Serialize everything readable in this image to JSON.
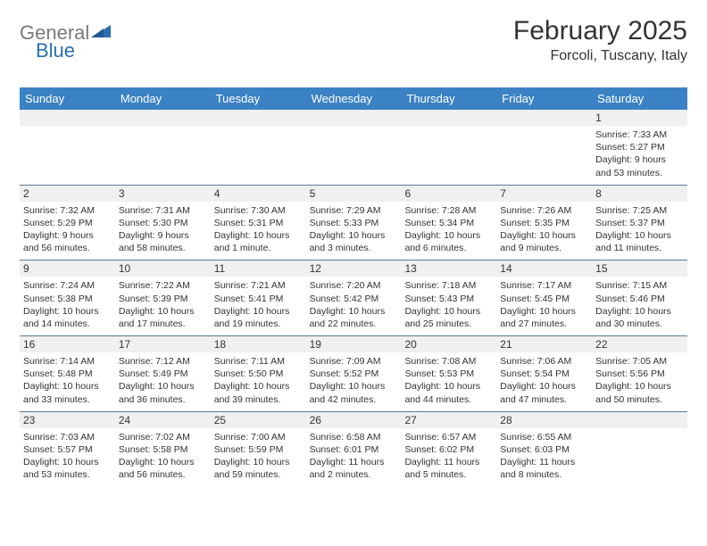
{
  "logo": {
    "textGray": "General",
    "textBlue": "Blue"
  },
  "header": {
    "title": "February 2025",
    "location": "Forcoli, Tuscany, Italy"
  },
  "colors": {
    "headerBar": "#3b82c4",
    "headerText": "#ffffff",
    "dayNumBand": "#f0f0f0",
    "rowBorder": "#5a7a9a",
    "bodyText": "#333333",
    "logoGray": "#7a7a7a",
    "logoBlue": "#2a6fb0",
    "background": "#ffffff"
  },
  "typography": {
    "titleSize": 30,
    "locationSize": 16,
    "weekdaySize": 13,
    "dayNumSize": 12,
    "cellTextSize": 10.5,
    "logoSize": 22
  },
  "weekdays": [
    "Sunday",
    "Monday",
    "Tuesday",
    "Wednesday",
    "Thursday",
    "Friday",
    "Saturday"
  ],
  "weeks": [
    [
      {
        "num": "",
        "l1": "",
        "l2": "",
        "l3": "",
        "l4": ""
      },
      {
        "num": "",
        "l1": "",
        "l2": "",
        "l3": "",
        "l4": ""
      },
      {
        "num": "",
        "l1": "",
        "l2": "",
        "l3": "",
        "l4": ""
      },
      {
        "num": "",
        "l1": "",
        "l2": "",
        "l3": "",
        "l4": ""
      },
      {
        "num": "",
        "l1": "",
        "l2": "",
        "l3": "",
        "l4": ""
      },
      {
        "num": "",
        "l1": "",
        "l2": "",
        "l3": "",
        "l4": ""
      },
      {
        "num": "1",
        "l1": "Sunrise: 7:33 AM",
        "l2": "Sunset: 5:27 PM",
        "l3": "Daylight: 9 hours",
        "l4": "and 53 minutes."
      }
    ],
    [
      {
        "num": "2",
        "l1": "Sunrise: 7:32 AM",
        "l2": "Sunset: 5:29 PM",
        "l3": "Daylight: 9 hours",
        "l4": "and 56 minutes."
      },
      {
        "num": "3",
        "l1": "Sunrise: 7:31 AM",
        "l2": "Sunset: 5:30 PM",
        "l3": "Daylight: 9 hours",
        "l4": "and 58 minutes."
      },
      {
        "num": "4",
        "l1": "Sunrise: 7:30 AM",
        "l2": "Sunset: 5:31 PM",
        "l3": "Daylight: 10 hours",
        "l4": "and 1 minute."
      },
      {
        "num": "5",
        "l1": "Sunrise: 7:29 AM",
        "l2": "Sunset: 5:33 PM",
        "l3": "Daylight: 10 hours",
        "l4": "and 3 minutes."
      },
      {
        "num": "6",
        "l1": "Sunrise: 7:28 AM",
        "l2": "Sunset: 5:34 PM",
        "l3": "Daylight: 10 hours",
        "l4": "and 6 minutes."
      },
      {
        "num": "7",
        "l1": "Sunrise: 7:26 AM",
        "l2": "Sunset: 5:35 PM",
        "l3": "Daylight: 10 hours",
        "l4": "and 9 minutes."
      },
      {
        "num": "8",
        "l1": "Sunrise: 7:25 AM",
        "l2": "Sunset: 5:37 PM",
        "l3": "Daylight: 10 hours",
        "l4": "and 11 minutes."
      }
    ],
    [
      {
        "num": "9",
        "l1": "Sunrise: 7:24 AM",
        "l2": "Sunset: 5:38 PM",
        "l3": "Daylight: 10 hours",
        "l4": "and 14 minutes."
      },
      {
        "num": "10",
        "l1": "Sunrise: 7:22 AM",
        "l2": "Sunset: 5:39 PM",
        "l3": "Daylight: 10 hours",
        "l4": "and 17 minutes."
      },
      {
        "num": "11",
        "l1": "Sunrise: 7:21 AM",
        "l2": "Sunset: 5:41 PM",
        "l3": "Daylight: 10 hours",
        "l4": "and 19 minutes."
      },
      {
        "num": "12",
        "l1": "Sunrise: 7:20 AM",
        "l2": "Sunset: 5:42 PM",
        "l3": "Daylight: 10 hours",
        "l4": "and 22 minutes."
      },
      {
        "num": "13",
        "l1": "Sunrise: 7:18 AM",
        "l2": "Sunset: 5:43 PM",
        "l3": "Daylight: 10 hours",
        "l4": "and 25 minutes."
      },
      {
        "num": "14",
        "l1": "Sunrise: 7:17 AM",
        "l2": "Sunset: 5:45 PM",
        "l3": "Daylight: 10 hours",
        "l4": "and 27 minutes."
      },
      {
        "num": "15",
        "l1": "Sunrise: 7:15 AM",
        "l2": "Sunset: 5:46 PM",
        "l3": "Daylight: 10 hours",
        "l4": "and 30 minutes."
      }
    ],
    [
      {
        "num": "16",
        "l1": "Sunrise: 7:14 AM",
        "l2": "Sunset: 5:48 PM",
        "l3": "Daylight: 10 hours",
        "l4": "and 33 minutes."
      },
      {
        "num": "17",
        "l1": "Sunrise: 7:12 AM",
        "l2": "Sunset: 5:49 PM",
        "l3": "Daylight: 10 hours",
        "l4": "and 36 minutes."
      },
      {
        "num": "18",
        "l1": "Sunrise: 7:11 AM",
        "l2": "Sunset: 5:50 PM",
        "l3": "Daylight: 10 hours",
        "l4": "and 39 minutes."
      },
      {
        "num": "19",
        "l1": "Sunrise: 7:09 AM",
        "l2": "Sunset: 5:52 PM",
        "l3": "Daylight: 10 hours",
        "l4": "and 42 minutes."
      },
      {
        "num": "20",
        "l1": "Sunrise: 7:08 AM",
        "l2": "Sunset: 5:53 PM",
        "l3": "Daylight: 10 hours",
        "l4": "and 44 minutes."
      },
      {
        "num": "21",
        "l1": "Sunrise: 7:06 AM",
        "l2": "Sunset: 5:54 PM",
        "l3": "Daylight: 10 hours",
        "l4": "and 47 minutes."
      },
      {
        "num": "22",
        "l1": "Sunrise: 7:05 AM",
        "l2": "Sunset: 5:56 PM",
        "l3": "Daylight: 10 hours",
        "l4": "and 50 minutes."
      }
    ],
    [
      {
        "num": "23",
        "l1": "Sunrise: 7:03 AM",
        "l2": "Sunset: 5:57 PM",
        "l3": "Daylight: 10 hours",
        "l4": "and 53 minutes."
      },
      {
        "num": "24",
        "l1": "Sunrise: 7:02 AM",
        "l2": "Sunset: 5:58 PM",
        "l3": "Daylight: 10 hours",
        "l4": "and 56 minutes."
      },
      {
        "num": "25",
        "l1": "Sunrise: 7:00 AM",
        "l2": "Sunset: 5:59 PM",
        "l3": "Daylight: 10 hours",
        "l4": "and 59 minutes."
      },
      {
        "num": "26",
        "l1": "Sunrise: 6:58 AM",
        "l2": "Sunset: 6:01 PM",
        "l3": "Daylight: 11 hours",
        "l4": "and 2 minutes."
      },
      {
        "num": "27",
        "l1": "Sunrise: 6:57 AM",
        "l2": "Sunset: 6:02 PM",
        "l3": "Daylight: 11 hours",
        "l4": "and 5 minutes."
      },
      {
        "num": "28",
        "l1": "Sunrise: 6:55 AM",
        "l2": "Sunset: 6:03 PM",
        "l3": "Daylight: 11 hours",
        "l4": "and 8 minutes."
      },
      {
        "num": "",
        "l1": "",
        "l2": "",
        "l3": "",
        "l4": ""
      }
    ]
  ]
}
